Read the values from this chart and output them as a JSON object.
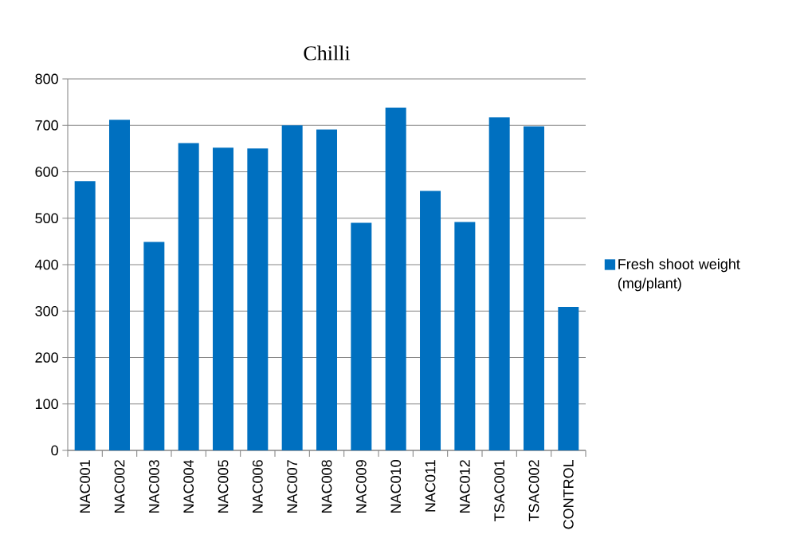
{
  "chart_data": {
    "type": "bar",
    "title": "Chilli",
    "categories": [
      "NAC001",
      "NAC002",
      "NAC003",
      "NAC004",
      "NAC005",
      "NAC006",
      "NAC007",
      "NAC008",
      "NAC009",
      "NAC010",
      "NAC011",
      "NAC012",
      "TSAC001",
      "TSAC002",
      "CONTROL"
    ],
    "series": [
      {
        "name": "Fresh shoot weight (mg/plant)",
        "color": "#0070c0",
        "values": [
          580,
          712,
          449,
          662,
          652,
          650,
          700,
          691,
          490,
          738,
          559,
          492,
          717,
          698,
          309
        ]
      }
    ],
    "ylim": [
      0,
      800
    ],
    "yticks": [
      0,
      100,
      200,
      300,
      400,
      500,
      600,
      700,
      800
    ],
    "grid": "y",
    "legend": "right"
  }
}
